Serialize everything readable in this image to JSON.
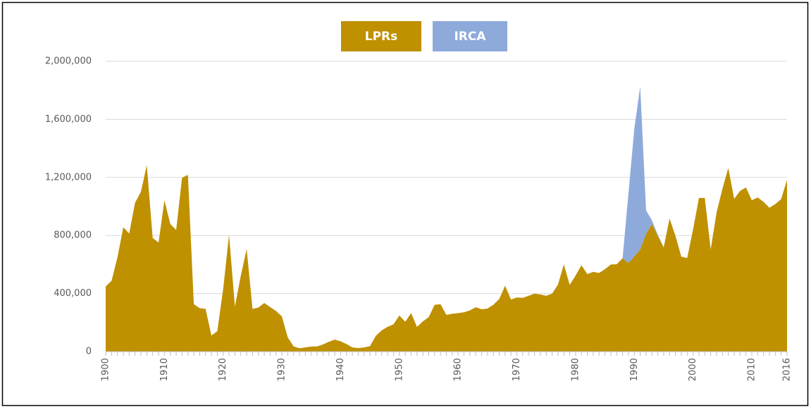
{
  "chart_data": {
    "type": "stacked_area",
    "x": [
      1900,
      1901,
      1902,
      1903,
      1904,
      1905,
      1906,
      1907,
      1908,
      1909,
      1910,
      1911,
      1912,
      1913,
      1914,
      1915,
      1916,
      1917,
      1918,
      1919,
      1920,
      1921,
      1922,
      1923,
      1924,
      1925,
      1926,
      1927,
      1928,
      1929,
      1930,
      1931,
      1932,
      1933,
      1934,
      1935,
      1936,
      1937,
      1938,
      1939,
      1940,
      1941,
      1942,
      1943,
      1944,
      1945,
      1946,
      1947,
      1948,
      1949,
      1950,
      1951,
      1952,
      1953,
      1954,
      1955,
      1956,
      1957,
      1958,
      1959,
      1960,
      1961,
      1962,
      1963,
      1964,
      1965,
      1966,
      1967,
      1968,
      1969,
      1970,
      1971,
      1972,
      1973,
      1974,
      1975,
      1976,
      1977,
      1978,
      1979,
      1980,
      1981,
      1982,
      1983,
      1984,
      1985,
      1986,
      1987,
      1988,
      1989,
      1990,
      1991,
      1992,
      1993,
      1994,
      1995,
      1996,
      1997,
      1998,
      1999,
      2000,
      2001,
      2002,
      2003,
      2004,
      2005,
      2006,
      2007,
      2008,
      2009,
      2010,
      2011,
      2012,
      2013,
      2014,
      2015,
      2016
    ],
    "series": [
      {
        "name": "LPRs",
        "color": "#bf9000",
        "values": [
          449000,
          488000,
          649000,
          857000,
          813000,
          1026000,
          1101000,
          1285000,
          783000,
          752000,
          1042000,
          879000,
          838000,
          1198000,
          1218000,
          327000,
          299000,
          295000,
          111000,
          141000,
          430000,
          805000,
          310000,
          523000,
          707000,
          294000,
          304000,
          335000,
          307000,
          280000,
          242000,
          97000,
          36000,
          23000,
          29000,
          35000,
          36000,
          50000,
          68000,
          83000,
          71000,
          52000,
          29000,
          24000,
          29000,
          38000,
          109000,
          147000,
          171000,
          188000,
          249000,
          206000,
          266000,
          170000,
          208000,
          238000,
          322000,
          327000,
          253000,
          261000,
          265000,
          271000,
          284000,
          306000,
          292000,
          297000,
          323000,
          362000,
          454000,
          359000,
          373000,
          370000,
          385000,
          399000,
          394000,
          385000,
          399000,
          462000,
          601000,
          460000,
          524000,
          595000,
          534000,
          550000,
          542000,
          568000,
          600000,
          602000,
          643000,
          611000,
          656000,
          703000,
          811000,
          880000,
          798000,
          716000,
          916000,
          798000,
          654000,
          645000,
          841000,
          1059000,
          1059000,
          704000,
          958000,
          1122000,
          1266000,
          1052000,
          1107000,
          1131000,
          1043000,
          1062000,
          1032000,
          991000,
          1017000,
          1051000,
          1184000
        ]
      },
      {
        "name": "IRCA",
        "color": "#8eaadb",
        "values": [
          0,
          0,
          0,
          0,
          0,
          0,
          0,
          0,
          0,
          0,
          0,
          0,
          0,
          0,
          0,
          0,
          0,
          0,
          0,
          0,
          0,
          0,
          0,
          0,
          0,
          0,
          0,
          0,
          0,
          0,
          0,
          0,
          0,
          0,
          0,
          0,
          0,
          0,
          0,
          0,
          0,
          0,
          0,
          0,
          0,
          0,
          0,
          0,
          0,
          0,
          0,
          0,
          0,
          0,
          0,
          0,
          0,
          0,
          0,
          0,
          0,
          0,
          0,
          0,
          0,
          0,
          0,
          0,
          0,
          0,
          0,
          0,
          0,
          0,
          0,
          0,
          0,
          0,
          0,
          0,
          0,
          0,
          0,
          0,
          0,
          0,
          0,
          0,
          0,
          479000,
          880000,
          1123000,
          163000,
          24000,
          6000,
          4000,
          0,
          0,
          0,
          0,
          0,
          0,
          0,
          0,
          0,
          0,
          0,
          0,
          0,
          0,
          0,
          0,
          0,
          0,
          0,
          0,
          0
        ]
      }
    ],
    "xlim": [
      1900,
      2016
    ],
    "xticks": [
      1900,
      1910,
      1920,
      1930,
      1940,
      1950,
      1960,
      1970,
      1980,
      1990,
      2000,
      2010,
      2016
    ],
    "ylim": [
      0,
      2000000
    ],
    "yticks": [
      0,
      {
        "value": 400000,
        "label": "400,000"
      },
      {
        "value": 800000,
        "label": "800,000"
      },
      {
        "value": 1200000,
        "label": "1,200,000"
      },
      {
        "value": 1600000,
        "label": "1,600,000"
      },
      {
        "value": 2000000,
        "label": "2,000,000"
      }
    ],
    "grid": true,
    "legend": "top"
  }
}
